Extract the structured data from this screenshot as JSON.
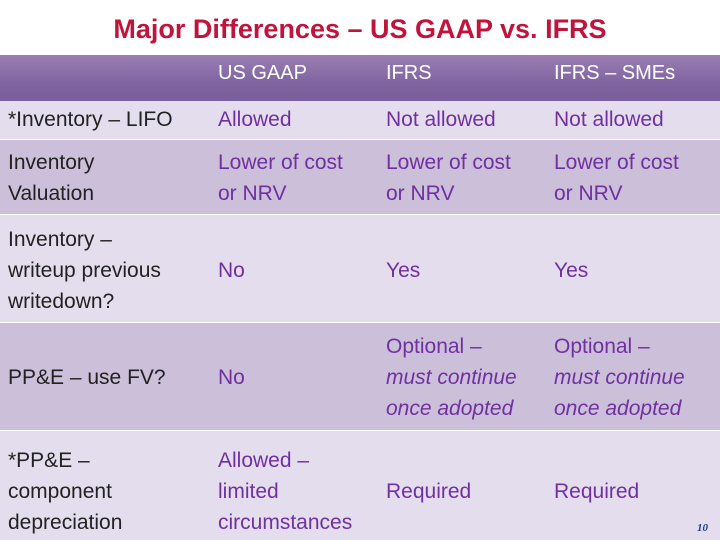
{
  "title": "Major Differences – US GAAP vs. IFRS",
  "header": {
    "col1": "US GAAP",
    "col2": "IFRS",
    "col3": "IFRS – SMEs"
  },
  "rows": [
    {
      "label": "*Inventory – LIFO",
      "gaap": "Allowed",
      "ifrs": "Not allowed",
      "smes": "Not allowed"
    },
    {
      "label": [
        "Inventory",
        "Valuation"
      ],
      "gaap": [
        "Lower of cost",
        "or NRV"
      ],
      "ifrs": [
        "Lower of cost",
        "or NRV"
      ],
      "smes": [
        "Lower of cost",
        "or NRV"
      ]
    },
    {
      "label": [
        "Inventory –",
        "writeup previous",
        "writedown?"
      ],
      "gaap": "No",
      "ifrs": "Yes",
      "smes": "Yes"
    },
    {
      "label": "PP&E – use FV?",
      "gaap": "No",
      "ifrs": [
        "Optional –",
        "must continue",
        "once adopted"
      ],
      "smes": [
        "Optional –",
        "must continue",
        "once adopted"
      ]
    },
    {
      "label": [
        "*PP&E –",
        "component",
        "depreciation"
      ],
      "gaap": [
        "Allowed –",
        "limited",
        "circumstances"
      ],
      "ifrs": "Required",
      "smes": "Required"
    }
  ],
  "page_number": "10",
  "colors": {
    "title": "#c0143c",
    "header_band": "#8064a2",
    "value_text": "#7030a0",
    "row_light": "#e4dded",
    "row_dark": "#cbbfda"
  }
}
